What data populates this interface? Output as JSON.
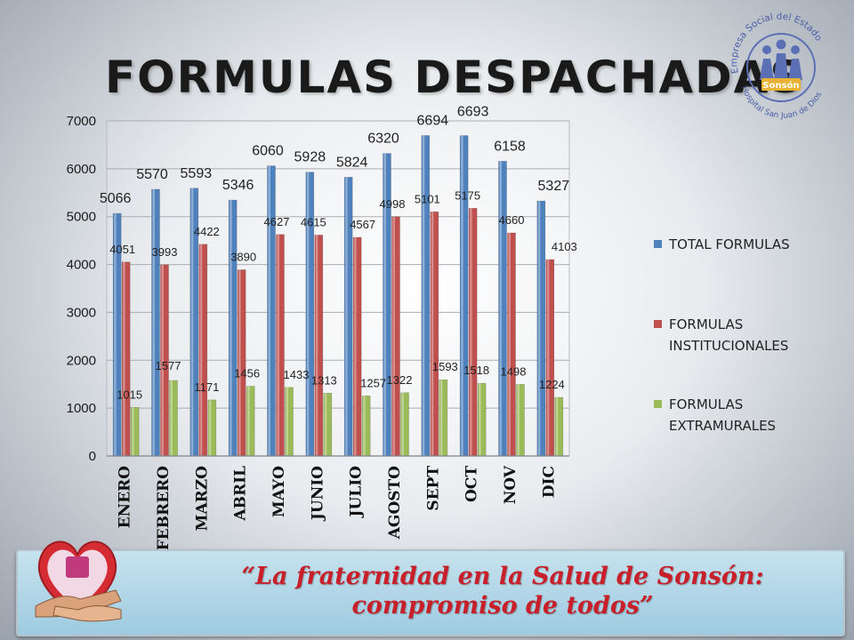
{
  "title": "FORMULAS DESPACHADAS",
  "chart_data": {
    "type": "bar",
    "categories": [
      "ENERO",
      "FEBRERO",
      "MARZO",
      "ABRIL",
      "MAYO",
      "JUNIO",
      "JULIO",
      "AGOSTO",
      "SEPT",
      "OCT",
      "NOV",
      "DIC"
    ],
    "series": [
      {
        "name": "TOTAL FORMULAS",
        "color": "#4f81bd",
        "values": [
          5066,
          5570,
          5593,
          5346,
          6060,
          5928,
          5824,
          6320,
          6694,
          6693,
          6158,
          5327
        ]
      },
      {
        "name": "FORMULAS INSTITUCIONALES",
        "color": "#c0504d",
        "values": [
          4051,
          3993,
          4422,
          3890,
          4627,
          4615,
          4567,
          4998,
          5101,
          5175,
          4660,
          4103
        ]
      },
      {
        "name": "FORMULAS EXTRAMURALES",
        "color": "#9bbb59",
        "values": [
          1015,
          1577,
          1171,
          1456,
          1433,
          1313,
          1257,
          1322,
          1593,
          1518,
          1498,
          1224
        ]
      }
    ],
    "ylim": [
      0,
      7000
    ],
    "yticks": [
      0,
      1000,
      2000,
      3000,
      4000,
      5000,
      6000,
      7000
    ],
    "grid": true,
    "legend": "right"
  },
  "logo": {
    "lines": [
      "Empresa Social del Estado",
      "Sonsón",
      "Hospital San Juan de Dios"
    ]
  },
  "banner": {
    "text": "“La fraternidad en la Salud de Sonsón: compromiso de todos”"
  }
}
